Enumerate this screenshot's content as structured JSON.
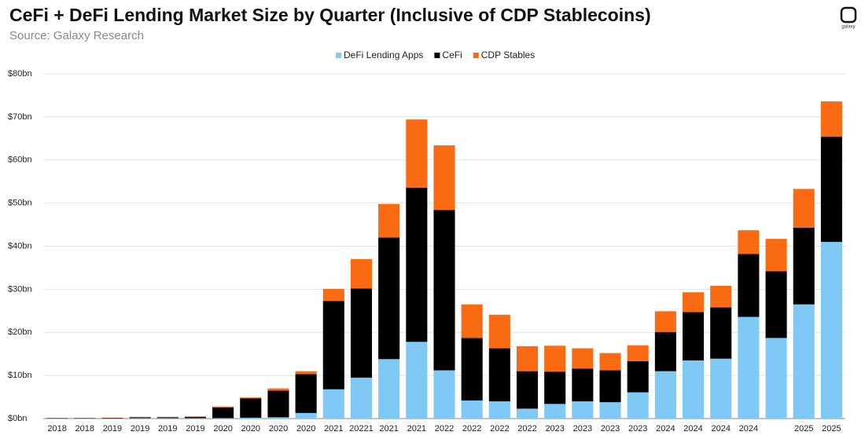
{
  "chart_data": {
    "type": "stacked_bar",
    "title": "CeFi + DeFi Lending Market Size by Quarter (Inclusive of CDP Stablecoins)",
    "subtitle": "Source: Galaxy Research",
    "brand": "galaxy",
    "categories": [
      "2018",
      "2018",
      "2019",
      "2019",
      "2019",
      "2019",
      "2020",
      "2020",
      "2020",
      "2020",
      "2021",
      "20221",
      "2021",
      "2021",
      "2022",
      "2022",
      "2022",
      "2022",
      "2023",
      "2023",
      "2023",
      "2023",
      "2024",
      "2024",
      "2024",
      "2024",
      null,
      "2025",
      "2025"
    ],
    "series": [
      {
        "name": "DeFi Lending Apps",
        "color": "#80c8f5",
        "values": [
          0,
          0,
          0,
          0.1,
          0.1,
          0.1,
          0.1,
          0.2,
          0.3,
          1.3,
          6.8,
          9.5,
          13.8,
          17.8,
          11.2,
          4.2,
          4.0,
          2.3,
          3.4,
          4.0,
          3.8,
          6.1,
          11.0,
          13.5,
          13.9,
          23.6,
          18.7,
          26.5,
          41.0
        ]
      },
      {
        "name": "CeFi",
        "color": "#000000",
        "values": [
          0.1,
          0.1,
          0.1,
          0.2,
          0.2,
          0.3,
          2.5,
          4.5,
          6.2,
          9.0,
          20.5,
          20.7,
          28.2,
          35.8,
          37.2,
          14.5,
          12.3,
          8.7,
          7.5,
          7.6,
          7.4,
          7.2,
          9.1,
          11.2,
          11.9,
          14.6,
          15.5,
          17.8,
          24.4
        ]
      },
      {
        "name": "CDP Stables",
        "color": "#fa6a12",
        "values": [
          0,
          0,
          0.1,
          0.1,
          0.1,
          0.1,
          0.2,
          0.2,
          0.5,
          0.7,
          2.8,
          6.8,
          7.8,
          15.8,
          15.0,
          7.8,
          7.8,
          5.8,
          6.0,
          4.7,
          4.0,
          3.7,
          4.8,
          4.6,
          5.0,
          5.5,
          7.5,
          9.0,
          8.2
        ]
      }
    ],
    "ylim": [
      0,
      80
    ],
    "yticks": [
      {
        "value": 0,
        "label": "$0bn"
      },
      {
        "value": 10,
        "label": "$10bn"
      },
      {
        "value": 20,
        "label": "$20bn"
      },
      {
        "value": 30,
        "label": "$30bn"
      },
      {
        "value": 40,
        "label": "$40bn"
      },
      {
        "value": 50,
        "label": "$50bn"
      },
      {
        "value": 60,
        "label": "$60bn"
      },
      {
        "value": 70,
        "label": "$70bn"
      },
      {
        "value": 80,
        "label": "$80bn"
      }
    ],
    "grid": true,
    "legend": "top"
  }
}
